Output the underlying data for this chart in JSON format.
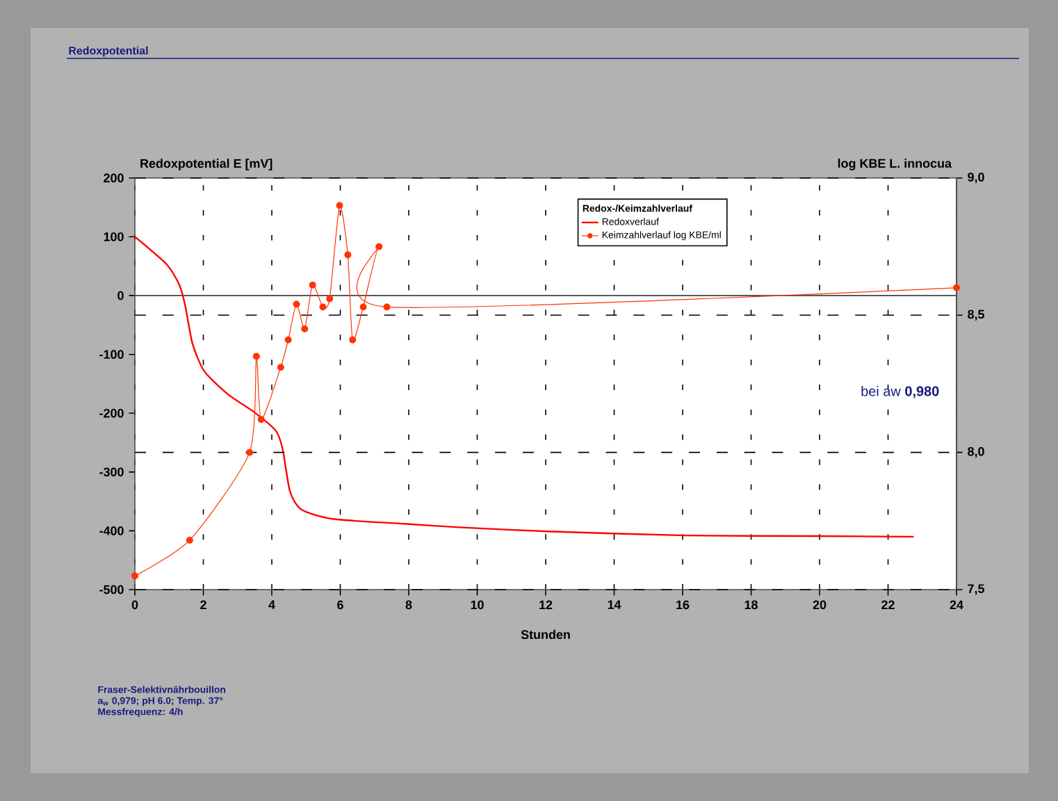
{
  "chart_data": {
    "type": "line",
    "title": "Redoxpotential",
    "xlabel": "Stunden",
    "ylabel": "Redoxpotential E [mV]",
    "y2label": "log KBE  L. innocua",
    "legend_title": "Redox-/Keimzahlverlauf",
    "annotations": [
      "bei aw **0,980**",
      "Fraser-Selektivnährbouillon",
      "a$_{w}$ 0,979; pH 6.0;  Temp. 37°",
      "Messfrequenz: 4/h"
    ],
    "xlim": [
      0,
      24
    ],
    "xticks": [
      0,
      2,
      4,
      6,
      8,
      10,
      12,
      14,
      16,
      18,
      20,
      22,
      24
    ],
    "ylim": [
      -500,
      200
    ],
    "yticks": [
      -500,
      -400,
      -300,
      -200,
      -100,
      0,
      100,
      200
    ],
    "y2lim": [
      7.5,
      9.0
    ],
    "y2ticks": [
      {
        "value": 7.5,
        "label": "7,5"
      },
      {
        "value": 8.0,
        "label": "8,0"
      },
      {
        "value": 8.5,
        "label": "8,5"
      },
      {
        "value": 9.0,
        "label": "9,0"
      }
    ],
    "grid": true,
    "legend": "top",
    "ref_lines": [
      {
        "axis": "y",
        "value": 0,
        "color": "#404040"
      }
    ],
    "series": [
      {
        "name": "Redoxverlauf",
        "color": "#ff0000",
        "marker": "none",
        "x": [
          0,
          0.93,
          1.3,
          1.47,
          1.68,
          2.02,
          2.7,
          3.5,
          4.12,
          4.32,
          4.53,
          4.87,
          5.81,
          7.85,
          9.47,
          12.04,
          16.1,
          19.9,
          22.75
        ],
        "values": [
          100,
          53,
          18,
          -17,
          -81,
          -128,
          -167,
          -199,
          -230,
          -262,
          -333,
          -364,
          -380,
          -388,
          -394,
          -401,
          -408,
          -409,
          -410
        ]
      },
      {
        "name": "Keimzahlverlauf log KBE/ml",
        "color": "#ff3300",
        "marker": "circle",
        "axis": "y2",
        "x": [
          0,
          1.6,
          3.35,
          3.55,
          3.69,
          4.26,
          4.48,
          4.72,
          4.96,
          5.19,
          5.49,
          5.69,
          5.98,
          6.22,
          6.36,
          6.67,
          7.13,
          7.36,
          24
        ],
        "values": [
          7.55,
          7.68,
          8.0,
          8.35,
          8.12,
          8.31,
          8.41,
          8.54,
          8.45,
          8.61,
          8.53,
          8.56,
          8.9,
          8.72,
          8.41,
          8.53,
          8.75,
          8.53,
          8.6
        ]
      }
    ]
  }
}
